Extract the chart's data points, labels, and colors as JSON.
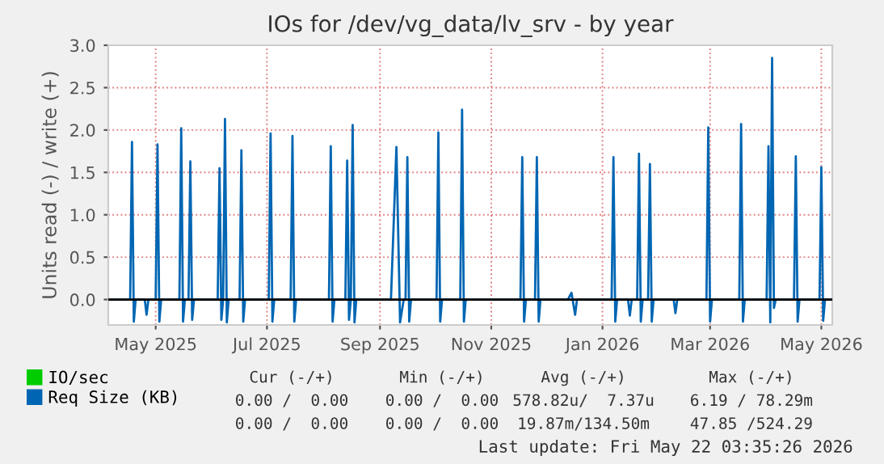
{
  "chart_data": {
    "type": "line",
    "title": "IOs for /dev/vg_data/lv_srv - by year",
    "ylabel": "Units read (-) / write (+)",
    "xlim": [
      "2025-04-05",
      "2026-05-07"
    ],
    "xticks": [
      {
        "value": "2025-05-01",
        "label": "May 2025"
      },
      {
        "value": "2025-07-01",
        "label": "Jul 2025"
      },
      {
        "value": "2025-09-01",
        "label": "Sep 2025"
      },
      {
        "value": "2025-11-01",
        "label": "Nov 2025"
      },
      {
        "value": "2026-01-01",
        "label": "Jan 2026"
      },
      {
        "value": "2026-03-01",
        "label": "Mar 2026"
      },
      {
        "value": "2026-05-01",
        "label": "May 2026"
      }
    ],
    "ylim": [
      -0.3,
      3.0
    ],
    "yticks": [
      {
        "value": 0,
        "label": "0.0"
      },
      {
        "value": 0.5,
        "label": "0.5"
      },
      {
        "value": 1,
        "label": "1.0"
      },
      {
        "value": 1.5,
        "label": "1.5"
      },
      {
        "value": 2,
        "label": "2.0"
      },
      {
        "value": 2.5,
        "label": "2.5"
      },
      {
        "value": 3,
        "label": "3.0"
      }
    ],
    "grid": true,
    "legend": "bottom",
    "ref_lines": [
      {
        "axis": "y",
        "value": 0,
        "color": "#000000"
      }
    ],
    "series": [
      {
        "name": "IO/sec",
        "color": "#00cc00"
      },
      {
        "name": "Req Size (KB)",
        "color": "#0066b3",
        "x": [
          "2025-04-05",
          "2025-04-17",
          "2025-04-18",
          "2025-04-19",
          "2025-04-20",
          "2025-04-25",
          "2025-04-26",
          "2025-04-27",
          "2025-05-01",
          "2025-05-02",
          "2025-05-03",
          "2025-05-04",
          "2025-05-14",
          "2025-05-15",
          "2025-05-16",
          "2025-05-17",
          "2025-05-19",
          "2025-05-20",
          "2025-05-21",
          "2025-05-22",
          "2025-06-04",
          "2025-06-05",
          "2025-06-06",
          "2025-06-07",
          "2025-06-08",
          "2025-06-09",
          "2025-06-10",
          "2025-06-16",
          "2025-06-17",
          "2025-06-18",
          "2025-06-19",
          "2025-07-02",
          "2025-07-03",
          "2025-07-04",
          "2025-07-05",
          "2025-07-14",
          "2025-07-15",
          "2025-07-16",
          "2025-07-17",
          "2025-08-04",
          "2025-08-05",
          "2025-08-06",
          "2025-08-07",
          "2025-08-13",
          "2025-08-14",
          "2025-08-15",
          "2025-08-16",
          "2025-08-17",
          "2025-08-18",
          "2025-08-19",
          "2025-09-07",
          "2025-09-10",
          "2025-09-12",
          "2025-09-14",
          "2025-09-15",
          "2025-09-16",
          "2025-09-17",
          "2025-09-18",
          "2025-10-02",
          "2025-10-03",
          "2025-10-04",
          "2025-10-05",
          "2025-10-15",
          "2025-10-16",
          "2025-10-17",
          "2025-10-18",
          "2025-11-17",
          "2025-11-18",
          "2025-11-19",
          "2025-11-20",
          "2025-11-25",
          "2025-11-26",
          "2025-11-27",
          "2025-11-28",
          "2025-12-13",
          "2025-12-15",
          "2025-12-17",
          "2025-12-18",
          "2026-01-06",
          "2026-01-07",
          "2026-01-08",
          "2026-01-09",
          "2026-01-15",
          "2026-01-16",
          "2026-01-17",
          "2026-01-20",
          "2026-01-21",
          "2026-01-22",
          "2026-01-23",
          "2026-01-26",
          "2026-01-27",
          "2026-01-28",
          "2026-01-29",
          "2026-02-09",
          "2026-02-10",
          "2026-02-11",
          "2026-02-27",
          "2026-02-28",
          "2026-03-01",
          "2026-03-02",
          "2026-03-17",
          "2026-03-18",
          "2026-03-19",
          "2026-03-20",
          "2026-04-01",
          "2026-04-02",
          "2026-04-03",
          "2026-04-04",
          "2026-04-05",
          "2026-04-06",
          "2026-04-16",
          "2026-04-17",
          "2026-04-18",
          "2026-04-19",
          "2026-04-30",
          "2026-05-01",
          "2026-05-02",
          "2026-05-03",
          "2026-05-07"
        ],
        "values": [
          0,
          0,
          1.86,
          -0.26,
          0,
          0,
          -0.18,
          0,
          0,
          1.83,
          -0.26,
          0,
          0,
          2.02,
          -0.26,
          0,
          0,
          1.63,
          -0.24,
          0,
          0,
          1.55,
          -0.24,
          0,
          2.13,
          -0.27,
          0,
          0,
          1.76,
          -0.26,
          0,
          0,
          1.96,
          -0.26,
          0,
          0,
          1.93,
          -0.26,
          0,
          0,
          1.81,
          -0.26,
          0,
          0,
          1.64,
          -0.24,
          0,
          2.06,
          -0.27,
          0,
          0,
          1.8,
          -0.27,
          0,
          0,
          1.68,
          -0.26,
          0,
          0,
          1.97,
          -0.26,
          0,
          0,
          2.24,
          -0.26,
          0,
          0,
          1.68,
          -0.26,
          0,
          0,
          1.68,
          -0.26,
          0,
          0,
          0.08,
          -0.18,
          0,
          0,
          1.68,
          -0.26,
          0,
          0,
          -0.19,
          0,
          0,
          1.72,
          -0.26,
          0,
          0,
          1.6,
          -0.26,
          0,
          0,
          -0.16,
          0,
          0,
          2.03,
          -0.26,
          0,
          0,
          2.07,
          -0.26,
          0,
          0,
          1.81,
          -0.27,
          2.85,
          -0.1,
          0,
          0,
          1.69,
          -0.26,
          0,
          0,
          1.56,
          -0.25,
          0,
          0
        ]
      }
    ],
    "annotations": [
      "Cur (-/+)",
      "Min (-/+)",
      "Avg (-/+)",
      "Max (-/+)",
      "0.00 /  0.00",
      "0.00 /  0.00",
      "578.82u/  7.37u",
      "6.19 / 78.29m",
      "0.00 /  0.00",
      "0.00 /  0.00",
      "19.87m/134.50m",
      "47.85 /524.29",
      "Last update: Fri May 22 03:35:26 2026"
    ]
  }
}
